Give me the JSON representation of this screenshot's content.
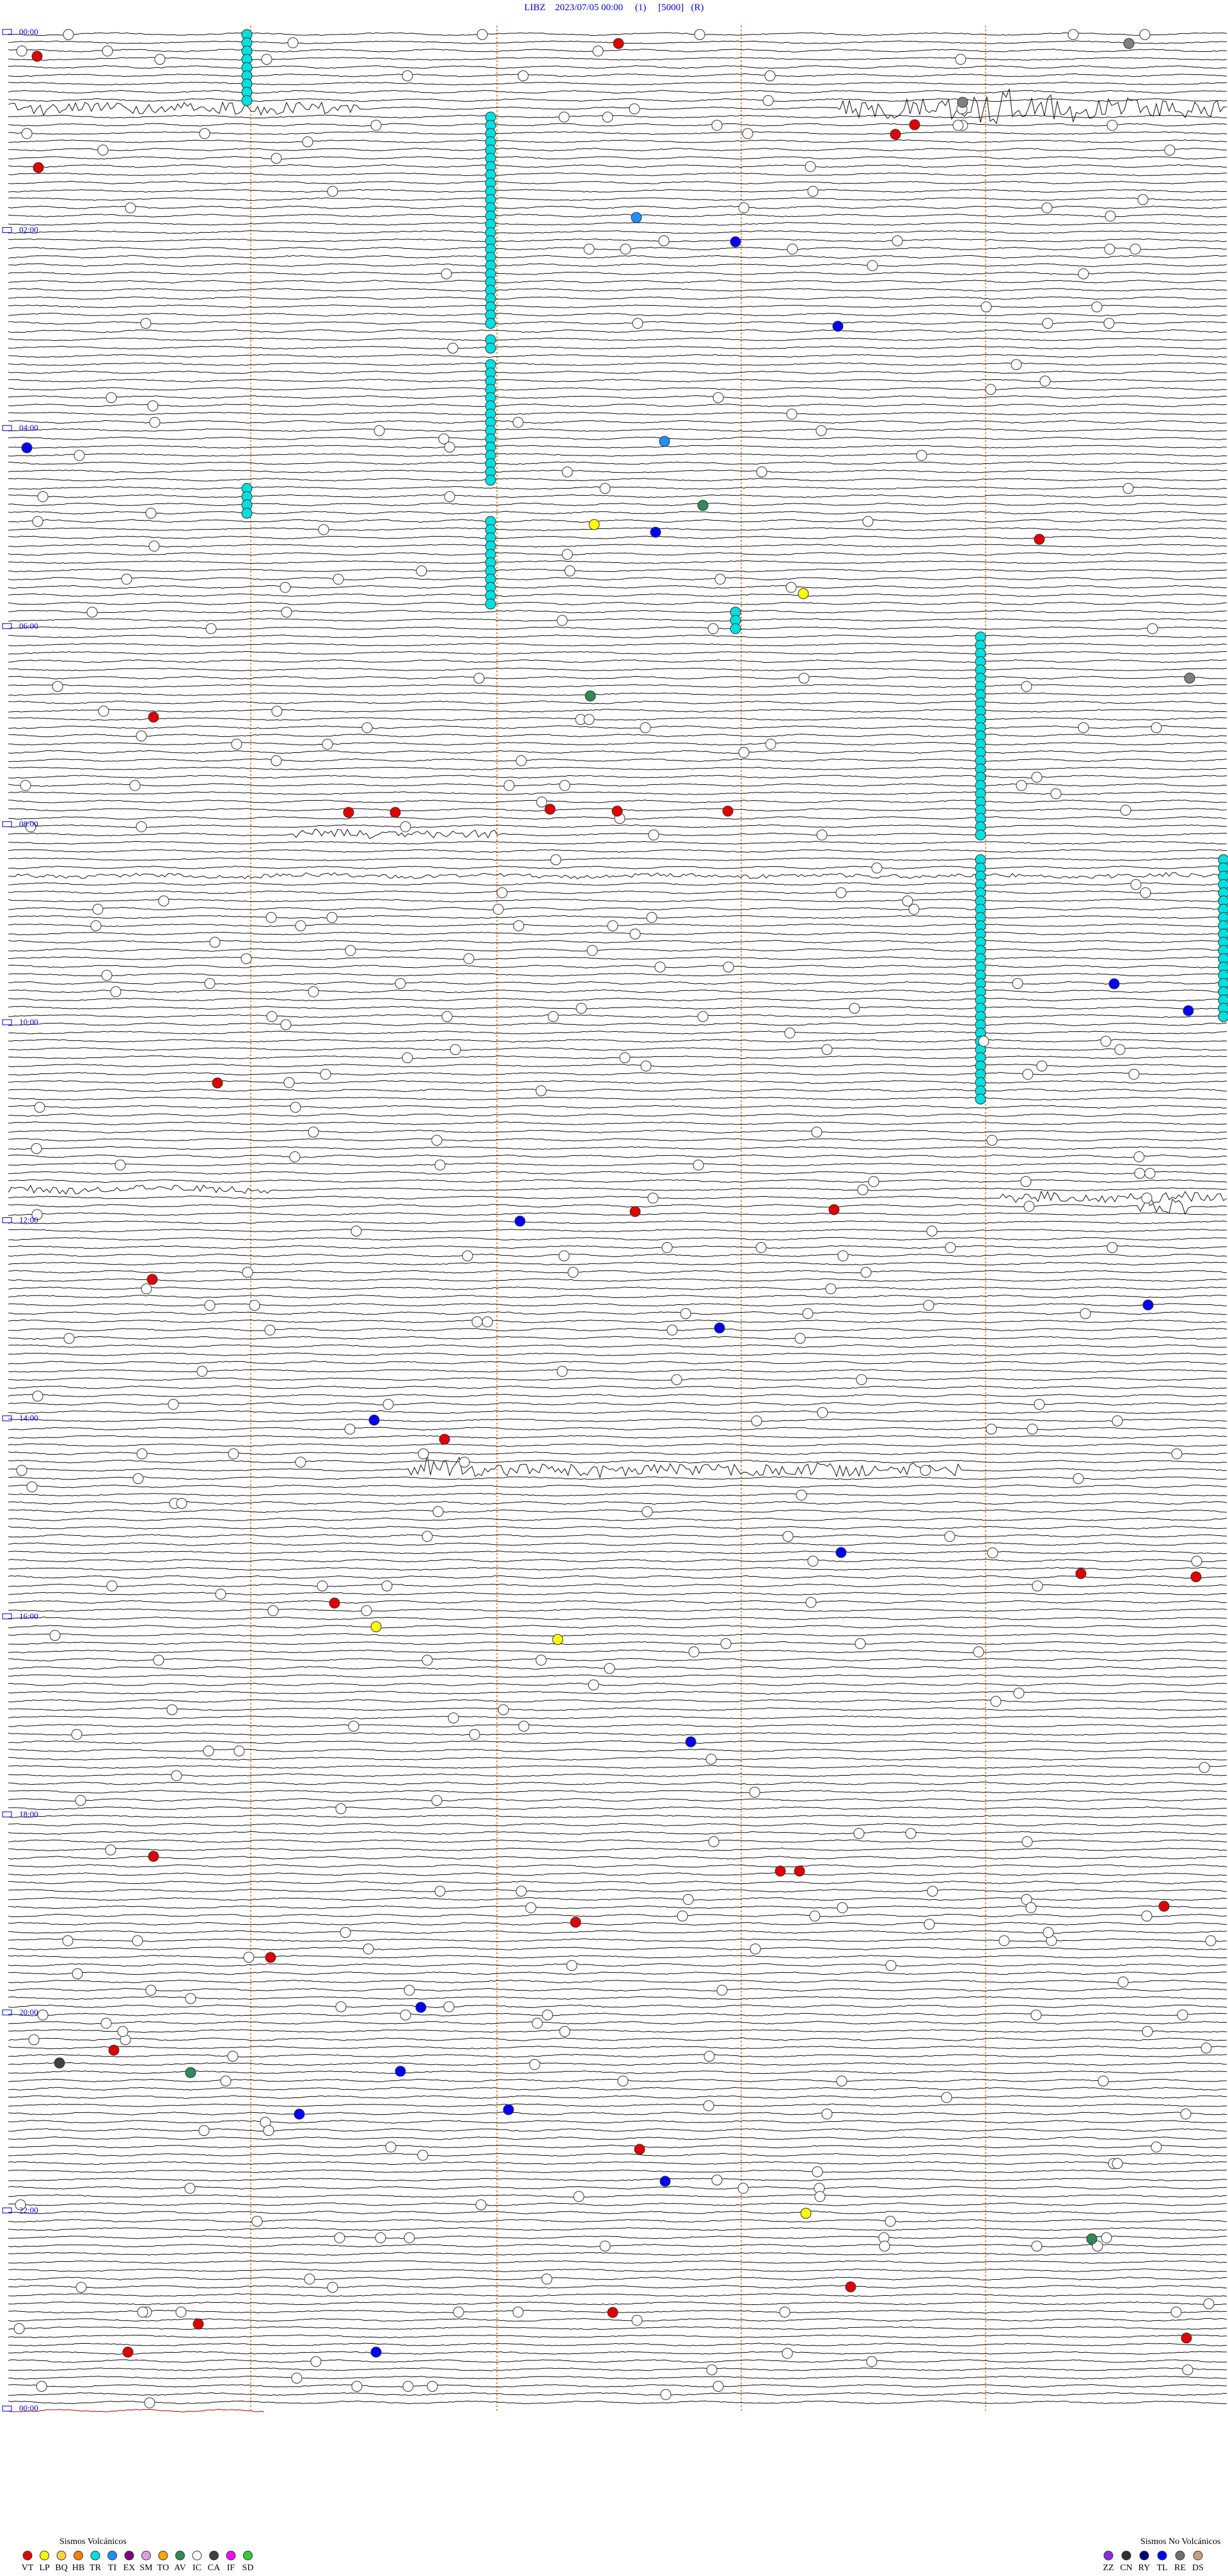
{
  "header": {
    "title": "LIBZ    2023/07/05 00:00     (1)     [5000]   (R)"
  },
  "hour_labels": [
    "00:00",
    "02:00",
    "04:00",
    "06:00",
    "08:00",
    "10:00",
    "12:00",
    "14:00",
    "16:00",
    "18:00",
    "20:00",
    "22:00",
    "00:00"
  ],
  "legend": {
    "volcanic": {
      "title": "Sismos Volcánicos",
      "items": [
        {
          "code": "VT",
          "color": "#e00000"
        },
        {
          "code": "LP",
          "color": "#ffff00"
        },
        {
          "code": "BQ",
          "color": "#ffd24d"
        },
        {
          "code": "HB",
          "color": "#ff8000"
        },
        {
          "code": "TR",
          "color": "#00e0e0"
        },
        {
          "code": "TI",
          "color": "#1e90ff"
        },
        {
          "code": "EX",
          "color": "#800080"
        },
        {
          "code": "SM",
          "color": "#dda0dd"
        },
        {
          "code": "TO",
          "color": "#ffa500"
        },
        {
          "code": "AV",
          "color": "#2e8b57"
        },
        {
          "code": "IC",
          "color": "#ffffff"
        },
        {
          "code": "CA",
          "color": "#404040"
        },
        {
          "code": "IF",
          "color": "#ff00ff"
        },
        {
          "code": "SD",
          "color": "#32cd32"
        }
      ]
    },
    "non_volcanic": {
      "title": "Sismos No Volcánicos",
      "items": [
        {
          "code": "ZZ",
          "color": "#8a2be2"
        },
        {
          "code": "CN",
          "color": "#303030"
        },
        {
          "code": "RY",
          "color": "#000080"
        },
        {
          "code": "TL",
          "color": "#0000ff"
        },
        {
          "code": "RE",
          "color": "#707070"
        },
        {
          "code": "DS",
          "color": "#c8a080"
        }
      ]
    }
  }
}
